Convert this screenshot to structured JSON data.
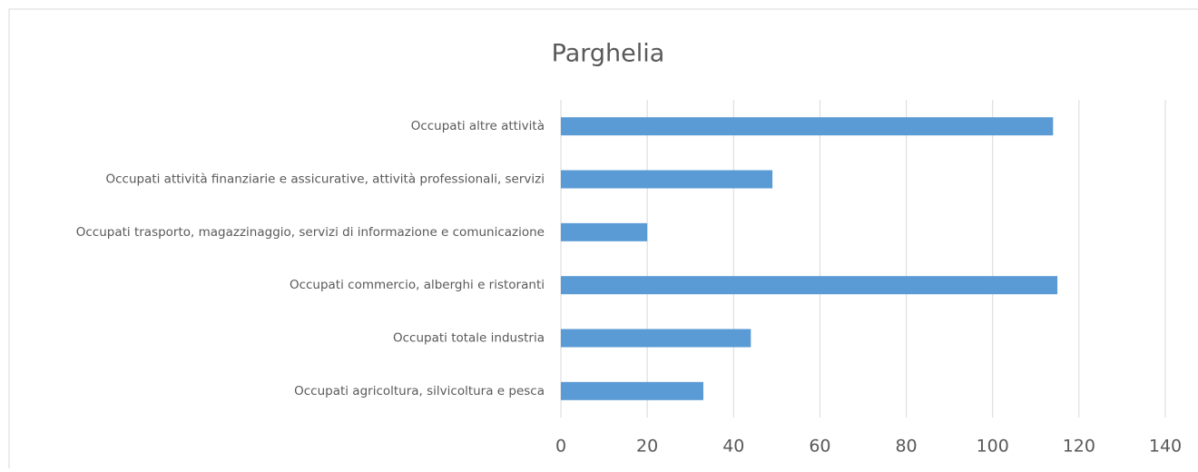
{
  "chart_data": {
    "type": "bar",
    "orientation": "horizontal",
    "title": "Parghelia",
    "categories": [
      "Occupati altre attività",
      "Occupati attività finanziarie e assicurative, attività professionali, servizi",
      "Occupati trasporto, magazzinaggio, servizi di informazione e comunicazione",
      "Occupati commercio, alberghi e ristoranti",
      "Occupati totale industria",
      "Occupati agricoltura, silvicoltura e pesca"
    ],
    "values": [
      114,
      49,
      20,
      115,
      44,
      33
    ],
    "color": "#5b9bd5",
    "xlim": [
      0,
      140
    ],
    "xticks": [
      0,
      20,
      40,
      60,
      80,
      100,
      120,
      140
    ],
    "grid": true
  }
}
